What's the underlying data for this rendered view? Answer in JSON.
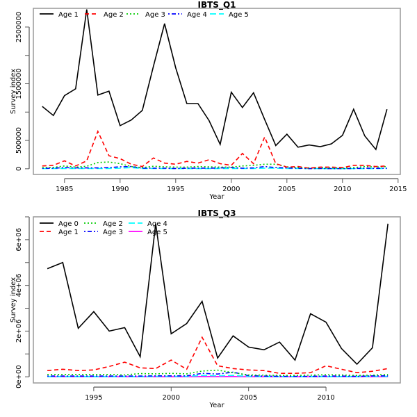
{
  "chart_data": [
    {
      "type": "line",
      "title": "IBTS_Q1",
      "xlabel": "Year",
      "ylabel": "Survey index",
      "xlim": [
        1982.2,
        2015.2
      ],
      "ylim": [
        -100000,
        2830000
      ],
      "xticks": [
        1985,
        1990,
        1995,
        2000,
        2005,
        2010,
        2015
      ],
      "xtick_labels": [
        "1985",
        "1990",
        "1995",
        "2000",
        "2005",
        "2010",
        "2015"
      ],
      "yticks": [
        0,
        500000,
        1000000,
        1500000,
        2000000,
        2500000
      ],
      "ytick_labels": [
        "0",
        "500000",
        "",
        "1500000",
        "",
        "2500000"
      ],
      "legend_position": "top-left",
      "legend_columns": 5,
      "x": [
        1983,
        1984,
        1985,
        1986,
        1987,
        1988,
        1989,
        1990,
        1991,
        1992,
        1993,
        1994,
        1995,
        1996,
        1997,
        1998,
        1999,
        2000,
        2001,
        2002,
        2003,
        2004,
        2005,
        2006,
        2007,
        2008,
        2009,
        2010,
        2011,
        2012,
        2013,
        2014
      ],
      "series": [
        {
          "name": "Age 1",
          "color": "#000000",
          "dash": "solid",
          "values": [
            1100000,
            940000,
            1290000,
            1410000,
            2810000,
            1300000,
            1370000,
            760000,
            860000,
            1030000,
            1810000,
            2560000,
            1780000,
            1150000,
            1150000,
            850000,
            430000,
            1350000,
            1080000,
            1340000,
            870000,
            410000,
            610000,
            380000,
            420000,
            390000,
            440000,
            590000,
            1050000,
            580000,
            340000,
            1050000
          ]
        },
        {
          "name": "Age 2",
          "color": "#ff0000",
          "dash": "dashed",
          "values": [
            50000,
            60000,
            140000,
            50000,
            140000,
            660000,
            230000,
            180000,
            80000,
            40000,
            190000,
            100000,
            80000,
            130000,
            100000,
            160000,
            90000,
            60000,
            270000,
            90000,
            560000,
            90000,
            30000,
            40000,
            10000,
            30000,
            30000,
            20000,
            60000,
            60000,
            40000,
            50000
          ]
        },
        {
          "name": "Age 3",
          "color": "#00cc00",
          "dash": "dotted",
          "values": [
            20000,
            25000,
            50000,
            30000,
            45000,
            110000,
            120000,
            90000,
            40000,
            20000,
            45000,
            35000,
            30000,
            30000,
            40000,
            35000,
            30000,
            30000,
            50000,
            60000,
            80000,
            80000,
            35000,
            20000,
            15000,
            15000,
            15000,
            10000,
            20000,
            40000,
            30000,
            40000
          ]
        },
        {
          "name": "Age 4",
          "color": "#0000ff",
          "dash": "dotdash",
          "values": [
            8000,
            10000,
            20000,
            15000,
            15000,
            15000,
            20000,
            35000,
            40000,
            10000,
            10000,
            10000,
            5000,
            10000,
            12000,
            10000,
            15000,
            20000,
            10000,
            15000,
            40000,
            20000,
            15000,
            10000,
            3000,
            5000,
            3000,
            3000,
            5000,
            10000,
            8000,
            10000
          ]
        },
        {
          "name": "Age 5",
          "color": "#00ffff",
          "dash": "longdash",
          "values": [
            3000,
            5000,
            5000,
            5000,
            5000,
            5000,
            5000,
            10000,
            20000,
            5000,
            5000,
            3000,
            3000,
            3000,
            3000,
            3000,
            5000,
            5000,
            5000,
            5000,
            10000,
            10000,
            5000,
            5000,
            3000,
            3000,
            2000,
            2000,
            3000,
            3000,
            3000,
            5000
          ]
        }
      ]
    },
    {
      "type": "line",
      "title": "IBTS_Q3",
      "xlabel": "Year",
      "ylabel": "Survey index",
      "xlim": [
        1991.1,
        2014.8
      ],
      "ylim": [
        -270000,
        7000000
      ],
      "xticks": [
        1995,
        2000,
        2005,
        2010
      ],
      "xtick_labels": [
        "1995",
        "2000",
        "2005",
        "2010"
      ],
      "yticks": [
        0,
        1000000,
        2000000,
        3000000,
        4000000,
        5000000,
        6000000,
        7000000
      ],
      "ytick_labels": [
        "0e+00",
        "",
        "2e+06",
        "",
        "4e+06",
        "",
        "6e+06",
        ""
      ],
      "legend_position": "top-left",
      "legend_columns": 3,
      "x": [
        1992,
        1993,
        1994,
        1995,
        1996,
        1997,
        1998,
        1999,
        2000,
        2001,
        2002,
        2003,
        2004,
        2005,
        2006,
        2007,
        2008,
        2009,
        2010,
        2011,
        2012,
        2013,
        2014
      ],
      "series": [
        {
          "name": "Age 0",
          "color": "#000000",
          "dash": "solid",
          "values": [
            4730000,
            5000000,
            2120000,
            2850000,
            2000000,
            2150000,
            880000,
            6700000,
            1880000,
            2330000,
            3300000,
            820000,
            1790000,
            1300000,
            1180000,
            1520000,
            730000,
            2760000,
            2390000,
            1240000,
            550000,
            1270000,
            6700000
          ]
        },
        {
          "name": "Age 1",
          "color": "#ff0000",
          "dash": "dashed",
          "values": [
            270000,
            330000,
            270000,
            300000,
            450000,
            640000,
            390000,
            360000,
            730000,
            330000,
            1730000,
            480000,
            360000,
            300000,
            270000,
            150000,
            150000,
            180000,
            480000,
            330000,
            180000,
            240000,
            360000
          ]
        },
        {
          "name": "Age 2",
          "color": "#00cc00",
          "dash": "dotted",
          "values": [
            100000,
            100000,
            100000,
            100000,
            100000,
            80000,
            140000,
            130000,
            150000,
            130000,
            250000,
            290000,
            180000,
            80000,
            70000,
            60000,
            60000,
            70000,
            90000,
            80000,
            60000,
            70000,
            100000
          ]
        },
        {
          "name": "Age 3",
          "color": "#0000ff",
          "dash": "dotdash",
          "values": [
            30000,
            30000,
            30000,
            30000,
            30000,
            30000,
            30000,
            40000,
            40000,
            40000,
            150000,
            120000,
            200000,
            50000,
            30000,
            20000,
            20000,
            20000,
            30000,
            30000,
            20000,
            40000,
            40000
          ]
        },
        {
          "name": "Age 4",
          "color": "#00ffff",
          "dash": "longdash",
          "values": [
            10000,
            10000,
            10000,
            10000,
            10000,
            10000,
            10000,
            20000,
            20000,
            20000,
            60000,
            40000,
            60000,
            20000,
            10000,
            10000,
            10000,
            10000,
            10000,
            10000,
            10000,
            20000,
            20000
          ]
        },
        {
          "name": "Age 5",
          "color": "#ff00ff",
          "dash": "solid",
          "values": [
            3000,
            3000,
            3000,
            3000,
            3000,
            3000,
            3000,
            5000,
            5000,
            5000,
            10000,
            10000,
            10000,
            5000,
            3000,
            3000,
            3000,
            3000,
            3000,
            3000,
            3000,
            5000,
            5000
          ]
        }
      ]
    }
  ]
}
